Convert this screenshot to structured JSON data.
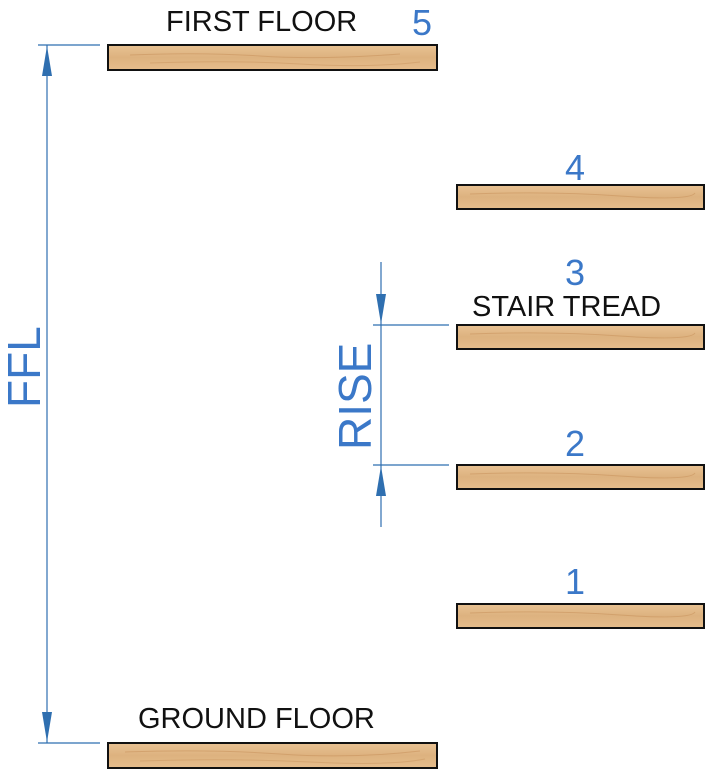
{
  "labels": {
    "first_floor": "FIRST FLOOR",
    "ground_floor": "GROUND FLOOR",
    "stair_tread": "STAIR TREAD",
    "ffl": "FFL",
    "rise": "RISE"
  },
  "step_numbers": [
    "1",
    "2",
    "3",
    "4",
    "5"
  ],
  "colors": {
    "wood": "#e2b886",
    "wood_grain": "#c9955f",
    "outline": "#111111",
    "dimension": "#2f6fb0",
    "step_number": "#3b78c8"
  }
}
